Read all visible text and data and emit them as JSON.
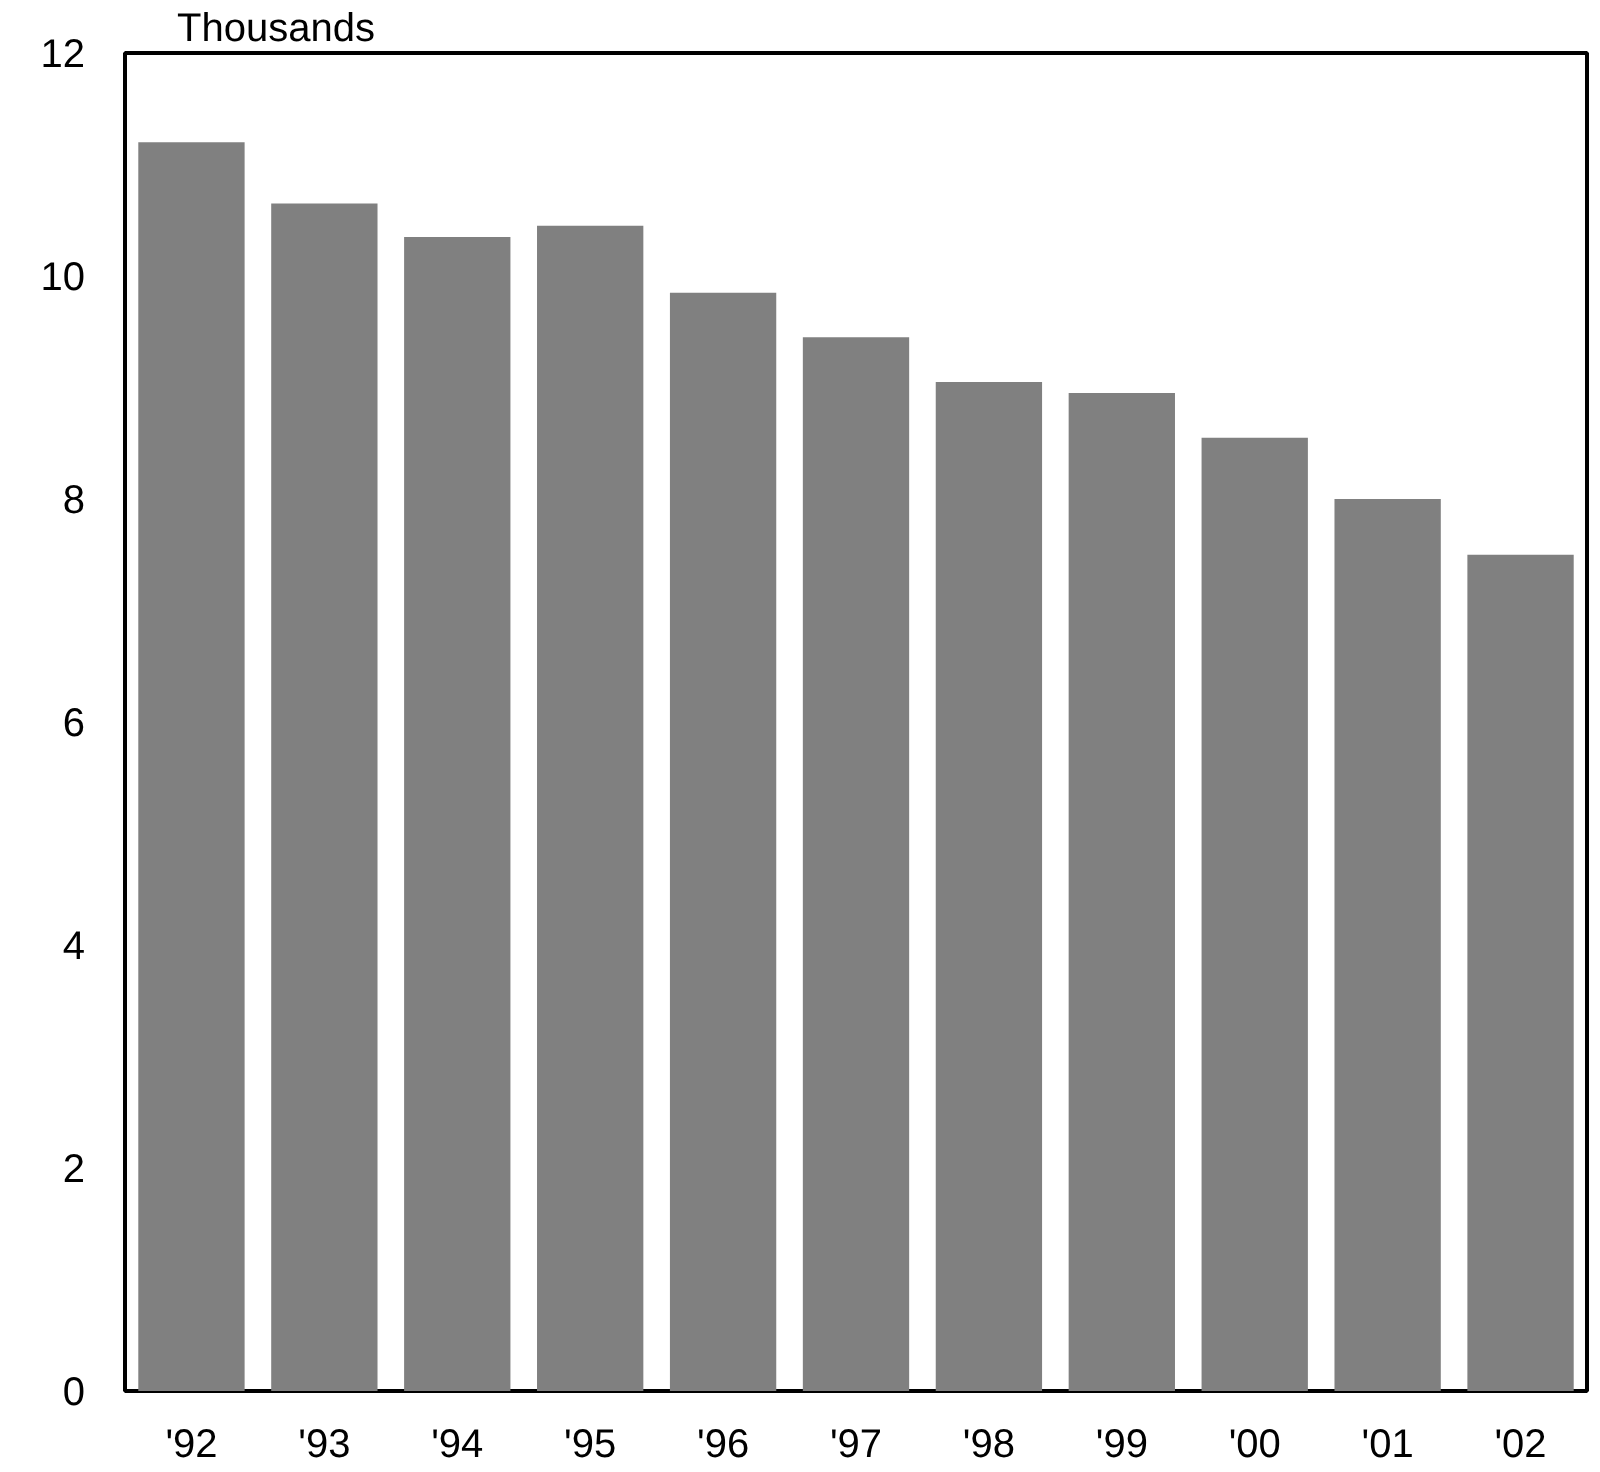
{
  "chart_data": {
    "type": "bar",
    "ylabel": "Thousands",
    "categories": [
      "'92",
      "'93",
      "'94",
      "'95",
      "'96",
      "'97",
      "'98",
      "'99",
      "'00",
      "'01",
      "'02"
    ],
    "values": [
      11.2,
      10.65,
      10.35,
      10.45,
      9.85,
      9.45,
      9.05,
      8.95,
      8.55,
      8.0,
      7.5
    ],
    "color": "#808080",
    "ylim": [
      0,
      12
    ],
    "yticks": [
      0,
      2,
      4,
      6,
      8,
      10,
      12
    ],
    "grid": false
  }
}
